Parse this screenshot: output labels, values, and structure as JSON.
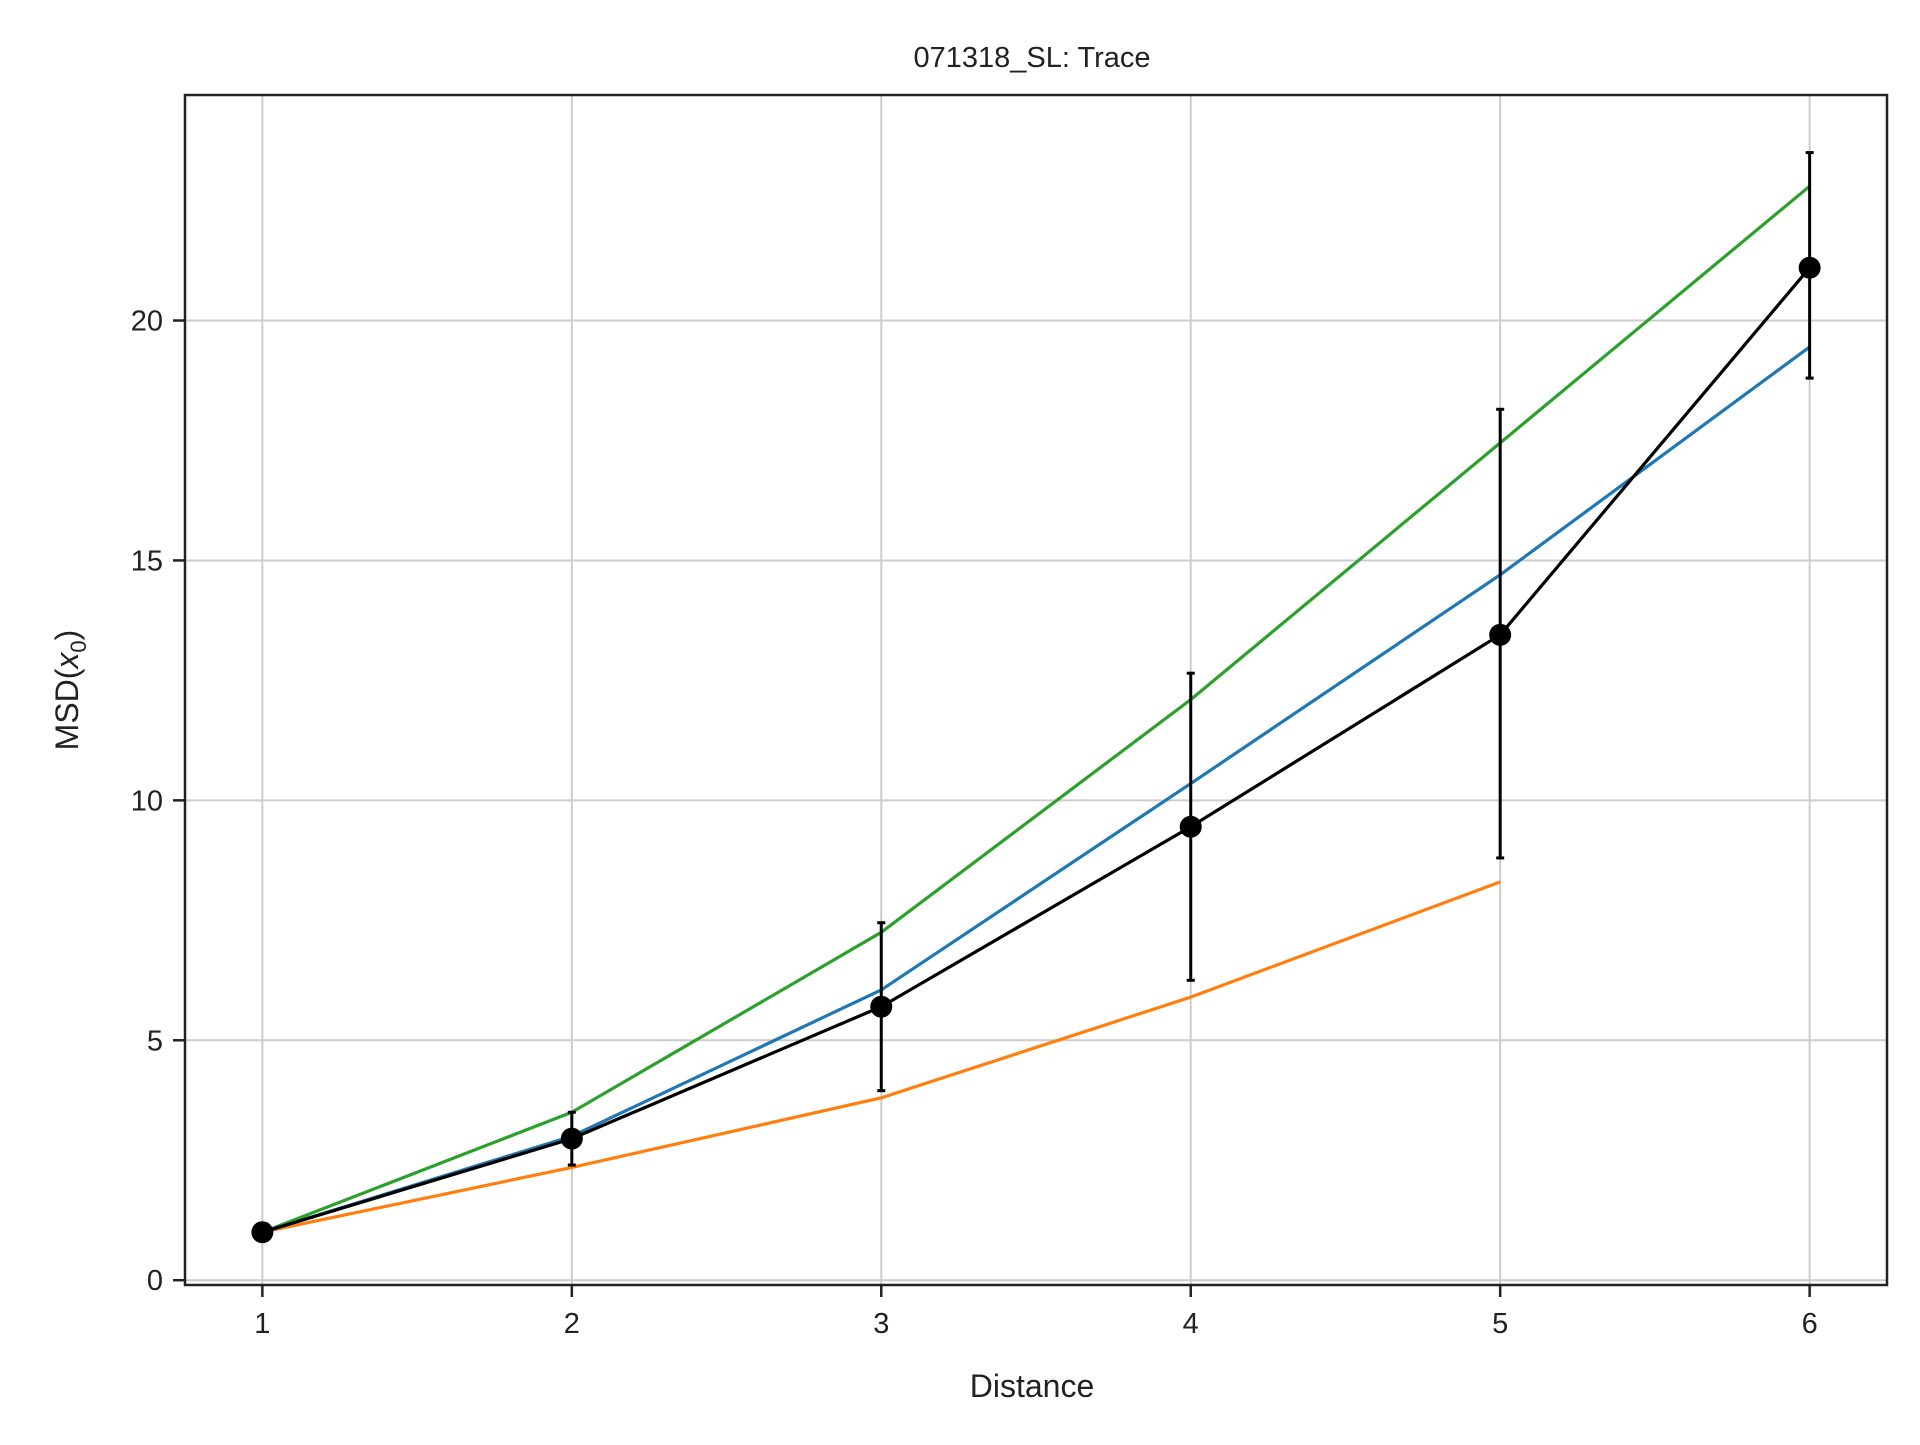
{
  "chart_data": {
    "type": "line",
    "title": "071318_SL: Trace",
    "xlabel": "Distance",
    "ylabel_main": "MSD(",
    "ylabel_var": "x",
    "ylabel_sub": "0",
    "ylabel_close": ")",
    "x": [
      1,
      2,
      3,
      4,
      5,
      6
    ],
    "xlim": [
      0.75,
      6.25
    ],
    "ylim": [
      -0.1,
      24.7
    ],
    "xticks": [
      1,
      2,
      3,
      4,
      5,
      6
    ],
    "yticks": [
      0,
      5,
      10,
      15,
      20
    ],
    "grid": true,
    "series": [
      {
        "color": "#1f77b4",
        "x": [
          1,
          2,
          3,
          4,
          5,
          6
        ],
        "values": [
          1.0,
          3.0,
          6.05,
          10.35,
          14.7,
          19.45
        ]
      },
      {
        "color": "#ff7f0e",
        "x": [
          1,
          2,
          3,
          4,
          5
        ],
        "values": [
          1.0,
          2.35,
          3.8,
          5.9,
          8.3
        ]
      },
      {
        "color": "#2ca02c",
        "x": [
          1,
          2,
          3,
          4,
          5,
          6
        ],
        "values": [
          1.0,
          3.5,
          7.25,
          12.1,
          17.45,
          22.8
        ]
      },
      {
        "color": "#000000",
        "x": [
          1,
          2,
          3,
          4,
          5,
          6
        ],
        "values": [
          1.0,
          2.95,
          5.7,
          9.45,
          13.45,
          21.1
        ],
        "error_low": [
          1.0,
          2.4,
          3.95,
          6.25,
          8.8,
          18.8
        ],
        "error_high": [
          1.0,
          3.5,
          7.45,
          12.65,
          18.15,
          23.5
        ]
      }
    ]
  }
}
